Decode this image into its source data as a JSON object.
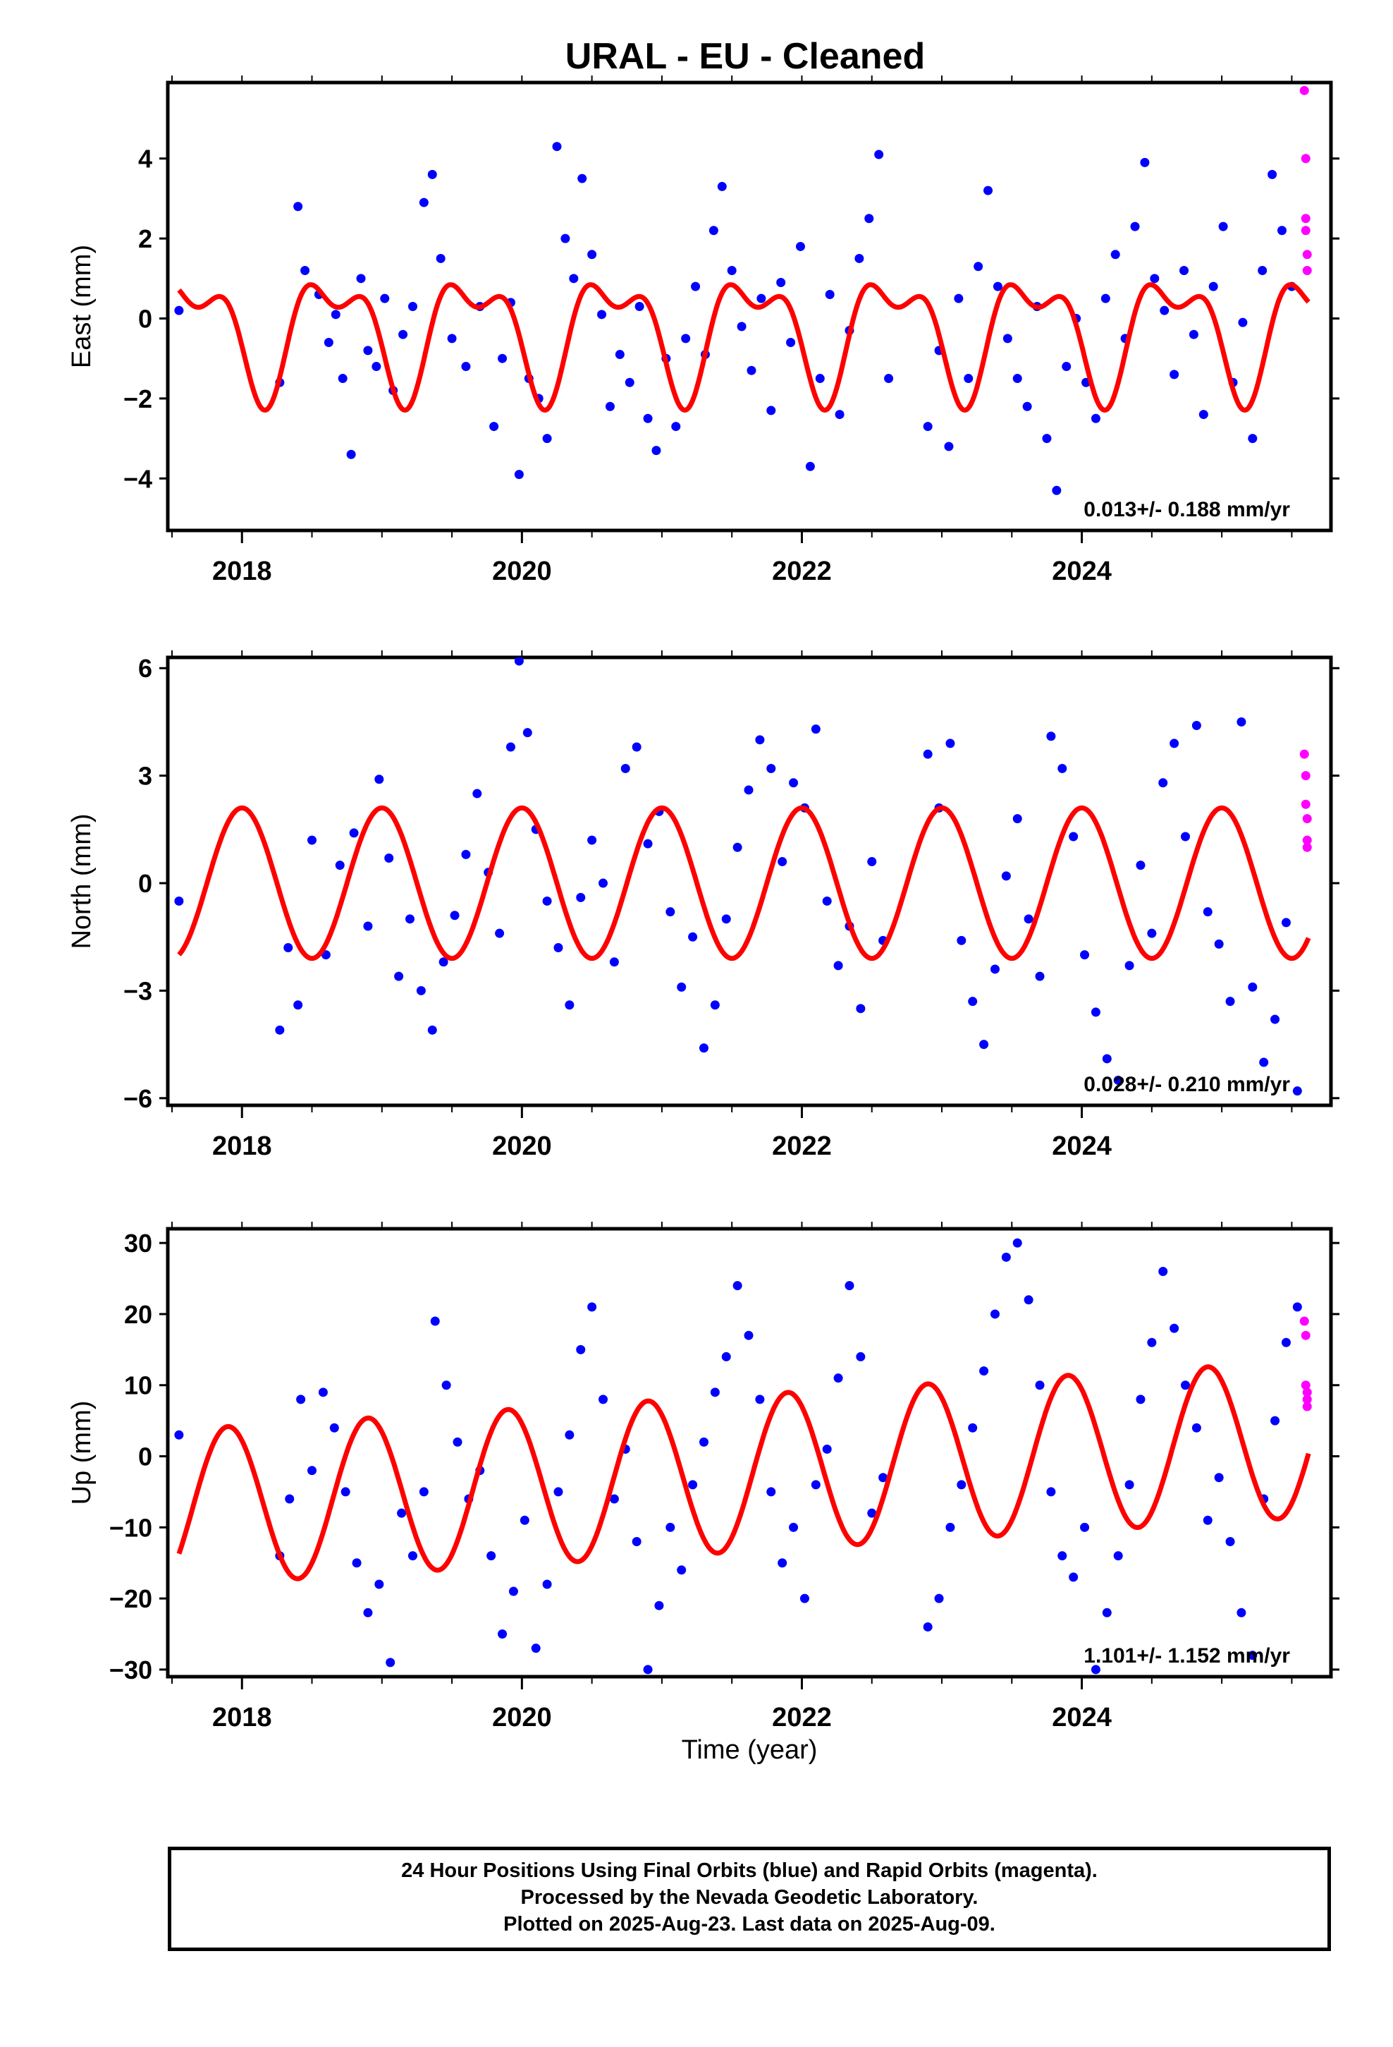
{
  "title": "URAL  - EU - Cleaned",
  "xlabel": "Time (year)",
  "footer": {
    "line1": "24 Hour Positions Using Final Orbits (blue) and Rapid Orbits (magenta).",
    "line2": "Processed by the Nevada Geodetic Laboratory.",
    "line3": "Plotted on 2025-Aug-23. Last data on 2025-Aug-09."
  },
  "colors": {
    "final": "#0000ff",
    "rapid": "#ff00ff",
    "model": "#ff0000",
    "frame": "#000000"
  },
  "chart_data": [
    {
      "type": "scatter",
      "panel": "east",
      "ylabel": "East (mm)",
      "xlim": [
        2017.47,
        2025.78
      ],
      "ylim": [
        -5.3,
        5.9
      ],
      "xticks": [
        2018,
        2020,
        2022,
        2024
      ],
      "yticks": [
        -4,
        -2,
        0,
        2,
        4
      ],
      "ytick_labels": [
        "−4",
        "−2",
        "0",
        "2",
        "4"
      ],
      "rate": "0.013+/- 0.188 mm/yr",
      "series": [
        {
          "label_color": "blue",
          "x": [
            2017.55,
            2018.27,
            2018.4,
            2018.45,
            2018.55,
            2018.62,
            2018.67,
            2018.72,
            2018.78,
            2018.85,
            2018.9,
            2018.96,
            2019.02,
            2019.08,
            2019.15,
            2019.22,
            2019.3,
            2019.36,
            2019.42,
            2019.5,
            2019.6,
            2019.7,
            2019.8,
            2019.86,
            2019.92,
            2019.98,
            2020.05,
            2020.12,
            2020.18,
            2020.25,
            2020.31,
            2020.37,
            2020.43,
            2020.5,
            2020.57,
            2020.63,
            2020.7,
            2020.77,
            2020.84,
            2020.9,
            2020.96,
            2021.03,
            2021.1,
            2021.17,
            2021.24,
            2021.31,
            2021.37,
            2021.43,
            2021.5,
            2021.57,
            2021.64,
            2021.71,
            2021.78,
            2021.85,
            2021.92,
            2021.99,
            2022.06,
            2022.13,
            2022.2,
            2022.27,
            2022.34,
            2022.41,
            2022.48,
            2022.55,
            2022.62,
            2022.9,
            2022.98,
            2023.05,
            2023.12,
            2023.19,
            2023.26,
            2023.33,
            2023.4,
            2023.47,
            2023.54,
            2023.61,
            2023.68,
            2023.75,
            2023.82,
            2023.89,
            2023.96,
            2024.03,
            2024.1,
            2024.17,
            2024.24,
            2024.31,
            2024.38,
            2024.45,
            2024.52,
            2024.59,
            2024.66,
            2024.73,
            2024.8,
            2024.87,
            2024.94,
            2025.01,
            2025.08,
            2025.15,
            2025.22,
            2025.29,
            2025.36,
            2025.43,
            2025.5
          ],
          "y": [
            0.2,
            -1.6,
            2.8,
            1.2,
            0.6,
            -0.6,
            0.1,
            -1.5,
            -3.4,
            1.0,
            -0.8,
            -1.2,
            0.5,
            -1.8,
            -0.4,
            0.3,
            2.9,
            3.6,
            1.5,
            -0.5,
            -1.2,
            0.3,
            -2.7,
            -1.0,
            0.4,
            -3.9,
            -1.5,
            -2.0,
            -3.0,
            4.3,
            2.0,
            1.0,
            3.5,
            1.6,
            0.1,
            -2.2,
            -0.9,
            -1.6,
            0.3,
            -2.5,
            -3.3,
            -1.0,
            -2.7,
            -0.5,
            0.8,
            -0.9,
            2.2,
            3.3,
            1.2,
            -0.2,
            -1.3,
            0.5,
            -2.3,
            0.9,
            -0.6,
            1.8,
            -3.7,
            -1.5,
            0.6,
            -2.4,
            -0.3,
            1.5,
            2.5,
            4.1,
            -1.5,
            -2.7,
            -0.8,
            -3.2,
            0.5,
            -1.5,
            1.3,
            3.2,
            0.8,
            -0.5,
            -1.5,
            -2.2,
            0.3,
            -3.0,
            -4.3,
            -1.2,
            0.0,
            -1.6,
            -2.5,
            0.5,
            1.6,
            -0.5,
            2.3,
            3.9,
            1.0,
            0.2,
            -1.4,
            1.2,
            -0.4,
            -2.4,
            0.8,
            2.3,
            -1.6,
            -0.1,
            -3.0,
            1.2,
            3.6,
            2.2,
            0.8
          ]
        },
        {
          "label_color": "magenta",
          "x": [
            2025.59,
            2025.6,
            2025.6,
            2025.6,
            2025.61,
            2025.61
          ],
          "y": [
            5.7,
            4.0,
            2.5,
            2.2,
            1.6,
            1.2
          ]
        }
      ]
    },
    {
      "type": "scatter",
      "panel": "north",
      "ylabel": "North (mm)",
      "xlim": [
        2017.47,
        2025.78
      ],
      "ylim": [
        -6.2,
        6.3
      ],
      "xticks": [
        2018,
        2020,
        2022,
        2024
      ],
      "yticks": [
        -6,
        -3,
        0,
        3,
        6
      ],
      "ytick_labels": [
        "−6",
        "−3",
        "0",
        "3",
        "6"
      ],
      "rate": "0.028+/- 0.210 mm/yr",
      "series": [
        {
          "label_color": "blue",
          "x": [
            2017.55,
            2018.27,
            2018.33,
            2018.4,
            2018.5,
            2018.6,
            2018.7,
            2018.8,
            2018.9,
            2018.98,
            2019.05,
            2019.12,
            2019.2,
            2019.28,
            2019.36,
            2019.44,
            2019.52,
            2019.6,
            2019.68,
            2019.76,
            2019.84,
            2019.92,
            2019.98,
            2020.04,
            2020.1,
            2020.18,
            2020.26,
            2020.34,
            2020.42,
            2020.5,
            2020.58,
            2020.66,
            2020.74,
            2020.82,
            2020.9,
            2020.98,
            2021.06,
            2021.14,
            2021.22,
            2021.3,
            2021.38,
            2021.46,
            2021.54,
            2021.62,
            2021.7,
            2021.78,
            2021.86,
            2021.94,
            2022.02,
            2022.1,
            2022.18,
            2022.26,
            2022.34,
            2022.42,
            2022.5,
            2022.58,
            2022.9,
            2022.98,
            2023.06,
            2023.14,
            2023.22,
            2023.3,
            2023.38,
            2023.46,
            2023.54,
            2023.62,
            2023.7,
            2023.78,
            2023.86,
            2023.94,
            2024.02,
            2024.1,
            2024.18,
            2024.26,
            2024.34,
            2024.42,
            2024.5,
            2024.58,
            2024.66,
            2024.74,
            2024.82,
            2024.9,
            2024.98,
            2025.06,
            2025.14,
            2025.22,
            2025.3,
            2025.38,
            2025.46,
            2025.54
          ],
          "y": [
            -0.5,
            -4.1,
            -1.8,
            -3.4,
            1.2,
            -2.0,
            0.5,
            1.4,
            -1.2,
            2.9,
            0.7,
            -2.6,
            -1.0,
            -3.0,
            -4.1,
            -2.2,
            -0.9,
            0.8,
            2.5,
            0.3,
            -1.4,
            3.8,
            6.2,
            4.2,
            1.5,
            -0.5,
            -1.8,
            -3.4,
            -0.4,
            1.2,
            0.0,
            -2.2,
            3.2,
            3.8,
            1.1,
            2.0,
            -0.8,
            -2.9,
            -1.5,
            -4.6,
            -3.4,
            -1.0,
            1.0,
            2.6,
            4.0,
            3.2,
            0.6,
            2.8,
            2.1,
            4.3,
            -0.5,
            -2.3,
            -1.2,
            -3.5,
            0.6,
            -1.6,
            3.6,
            2.1,
            3.9,
            -1.6,
            -3.3,
            -4.5,
            -2.4,
            0.2,
            1.8,
            -1.0,
            -2.6,
            4.1,
            3.2,
            1.3,
            -2.0,
            -3.6,
            -4.9,
            -5.5,
            -2.3,
            0.5,
            -1.4,
            2.8,
            3.9,
            1.3,
            4.4,
            -0.8,
            -1.7,
            -3.3,
            4.5,
            -2.9,
            -5.0,
            -3.8,
            -1.1,
            -5.8
          ]
        },
        {
          "label_color": "magenta",
          "x": [
            2025.59,
            2025.6,
            2025.6,
            2025.61,
            2025.61,
            2025.61
          ],
          "y": [
            3.6,
            3.0,
            2.2,
            1.8,
            1.2,
            1.0
          ]
        }
      ]
    },
    {
      "type": "scatter",
      "panel": "up",
      "ylabel": "Up (mm)",
      "xlim": [
        2017.47,
        2025.78
      ],
      "ylim": [
        -31,
        32
      ],
      "xticks": [
        2018,
        2020,
        2022,
        2024
      ],
      "yticks": [
        -30,
        -20,
        -10,
        0,
        10,
        20,
        30
      ],
      "ytick_labels": [
        "−30",
        "−20",
        "−10",
        "0",
        "10",
        "20",
        "30"
      ],
      "rate": "1.101+/- 1.152 mm/yr",
      "series": [
        {
          "label_color": "blue",
          "x": [
            2017.55,
            2018.27,
            2018.34,
            2018.42,
            2018.5,
            2018.58,
            2018.66,
            2018.74,
            2018.82,
            2018.9,
            2018.98,
            2019.06,
            2019.14,
            2019.22,
            2019.3,
            2019.38,
            2019.46,
            2019.54,
            2019.62,
            2019.7,
            2019.78,
            2019.86,
            2019.94,
            2020.02,
            2020.1,
            2020.18,
            2020.26,
            2020.34,
            2020.42,
            2020.5,
            2020.58,
            2020.66,
            2020.74,
            2020.82,
            2020.9,
            2020.98,
            2021.06,
            2021.14,
            2021.22,
            2021.3,
            2021.38,
            2021.46,
            2021.54,
            2021.62,
            2021.7,
            2021.78,
            2021.86,
            2021.94,
            2022.02,
            2022.1,
            2022.18,
            2022.26,
            2022.34,
            2022.42,
            2022.5,
            2022.58,
            2022.9,
            2022.98,
            2023.06,
            2023.14,
            2023.22,
            2023.3,
            2023.38,
            2023.46,
            2023.54,
            2023.62,
            2023.7,
            2023.78,
            2023.86,
            2023.94,
            2024.02,
            2024.1,
            2024.18,
            2024.26,
            2024.34,
            2024.42,
            2024.5,
            2024.58,
            2024.66,
            2024.74,
            2024.82,
            2024.9,
            2024.98,
            2025.06,
            2025.14,
            2025.22,
            2025.3,
            2025.38,
            2025.46,
            2025.54
          ],
          "y": [
            3,
            -14,
            -6,
            8,
            -2,
            9,
            4,
            -5,
            -15,
            -22,
            -18,
            -29,
            -8,
            -14,
            -5,
            19,
            10,
            2,
            -6,
            -2,
            -14,
            -25,
            -19,
            -9,
            -27,
            -18,
            -5,
            3,
            15,
            21,
            8,
            -6,
            1,
            -12,
            -30,
            -21,
            -10,
            -16,
            -4,
            2,
            9,
            14,
            24,
            17,
            8,
            -5,
            -15,
            -10,
            -20,
            -4,
            1,
            11,
            24,
            14,
            -8,
            -3,
            -24,
            -20,
            -10,
            -4,
            4,
            12,
            20,
            28,
            30,
            22,
            10,
            -5,
            -14,
            -17,
            -10,
            -30,
            -22,
            -14,
            -4,
            8,
            16,
            26,
            18,
            10,
            4,
            -9,
            -3,
            -12,
            -22,
            -28,
            -6,
            5,
            16,
            21
          ]
        },
        {
          "label_color": "magenta",
          "x": [
            2025.59,
            2025.6,
            2025.6,
            2025.61,
            2025.61,
            2025.61
          ],
          "y": [
            19,
            17,
            10,
            9,
            8,
            7
          ]
        }
      ]
    }
  ]
}
